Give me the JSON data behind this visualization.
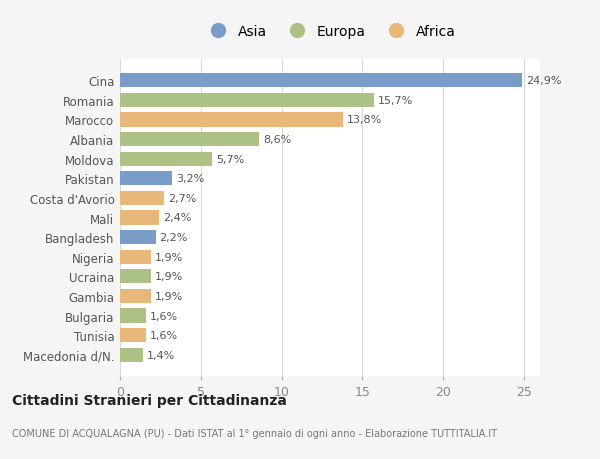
{
  "categories": [
    "Cina",
    "Romania",
    "Marocco",
    "Albania",
    "Moldova",
    "Pakistan",
    "Costa d'Avorio",
    "Mali",
    "Bangladesh",
    "Nigeria",
    "Ucraina",
    "Gambia",
    "Bulgaria",
    "Tunisia",
    "Macedonia d/N."
  ],
  "values": [
    24.9,
    15.7,
    13.8,
    8.6,
    5.7,
    3.2,
    2.7,
    2.4,
    2.2,
    1.9,
    1.9,
    1.9,
    1.6,
    1.6,
    1.4
  ],
  "labels": [
    "24,9%",
    "15,7%",
    "13,8%",
    "8,6%",
    "5,7%",
    "3,2%",
    "2,7%",
    "2,4%",
    "2,2%",
    "1,9%",
    "1,9%",
    "1,9%",
    "1,6%",
    "1,6%",
    "1,4%"
  ],
  "continents": [
    "Asia",
    "Europa",
    "Africa",
    "Europa",
    "Europa",
    "Asia",
    "Africa",
    "Africa",
    "Asia",
    "Africa",
    "Europa",
    "Africa",
    "Europa",
    "Africa",
    "Europa"
  ],
  "colors": {
    "Asia": "#7a9cc8",
    "Europa": "#adc185",
    "Africa": "#e8b87a"
  },
  "legend_labels": [
    "Asia",
    "Europa",
    "Africa"
  ],
  "xlim": [
    0,
    26
  ],
  "xticks": [
    0,
    5,
    10,
    15,
    20,
    25
  ],
  "title": "Cittadini Stranieri per Cittadinanza",
  "subtitle": "COMUNE DI ACQUALAGNA (PU) - Dati ISTAT al 1° gennaio di ogni anno - Elaborazione TUTTITALIA.IT",
  "bg_color": "#f5f5f5",
  "bar_bg_color": "#ffffff",
  "grid_color": "#d8d8d8"
}
